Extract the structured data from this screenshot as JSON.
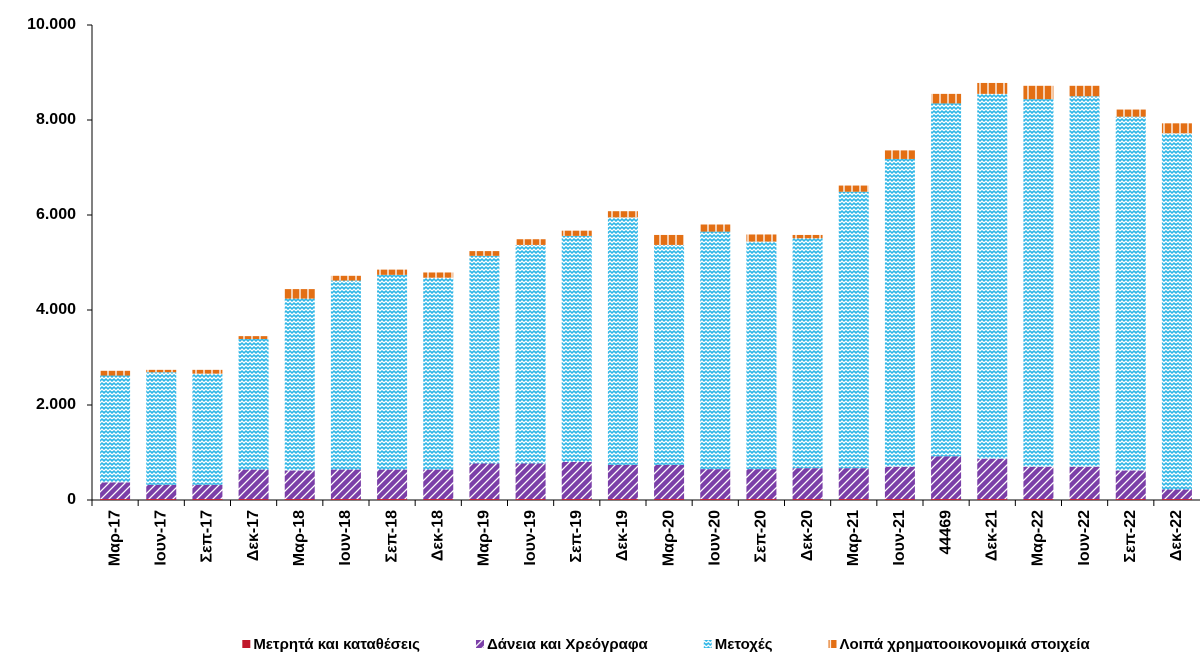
{
  "chart_data": {
    "type": "stacked_bar",
    "categories": [
      "Μαρ-17",
      "Ιουν-17",
      "Σεπ-17",
      "Δεκ-17",
      "Μαρ-18",
      "Ιουν-18",
      "Σεπ-18",
      "Δεκ-18",
      "Μαρ-19",
      "Ιουν-19",
      "Σεπ-19",
      "Δεκ-19",
      "Μαρ-20",
      "Ιουν-20",
      "Σεπ-20",
      "Δεκ-20",
      "Μαρ-21",
      "Ιουν-21",
      "44469",
      "Δεκ-21",
      "Μαρ-22",
      "Ιουν-22",
      "Σεπ-22",
      "Δεκ-22"
    ],
    "series": [
      {
        "name": "Μετρητά και καταθέσεις",
        "color": "#c0182a",
        "values": [
          20,
          20,
          20,
          20,
          20,
          20,
          20,
          20,
          20,
          20,
          20,
          20,
          20,
          20,
          20,
          20,
          20,
          20,
          20,
          20,
          20,
          20,
          20,
          20
        ]
      },
      {
        "name": "Δάνεια και Χρεόγραφα",
        "color": "#7b3fa8",
        "values": [
          350,
          300,
          300,
          620,
          600,
          620,
          620,
          620,
          750,
          750,
          780,
          720,
          720,
          630,
          630,
          650,
          650,
          680,
          900,
          850,
          680,
          680,
          600,
          200
        ]
      },
      {
        "name": "Μετοχές",
        "color": "#2eb6e6",
        "values": [
          2250,
          2370,
          2340,
          2750,
          3620,
          3980,
          4100,
          4040,
          4370,
          4600,
          4760,
          5210,
          4630,
          5000,
          4790,
          4840,
          5820,
          6480,
          7430,
          7680,
          7740,
          7800,
          7450,
          7500
        ]
      },
      {
        "name": "Λοιπά χρηματοοικονομικά στοιχεία",
        "color": "#e36f14",
        "values": [
          100,
          50,
          80,
          60,
          200,
          100,
          110,
          110,
          100,
          120,
          110,
          130,
          210,
          150,
          150,
          70,
          130,
          180,
          200,
          230,
          280,
          220,
          150,
          210
        ]
      }
    ],
    "ylim": [
      0,
      10000
    ],
    "yticks": [
      0,
      {
        "value": 2000,
        "label": "2.000"
      },
      {
        "value": 4000,
        "label": "4.000"
      },
      {
        "value": 6000,
        "label": "6.000"
      },
      {
        "value": 8000,
        "label": "8.000"
      },
      {
        "value": 10000,
        "label": "10.000"
      }
    ],
    "legend": "bottom"
  }
}
